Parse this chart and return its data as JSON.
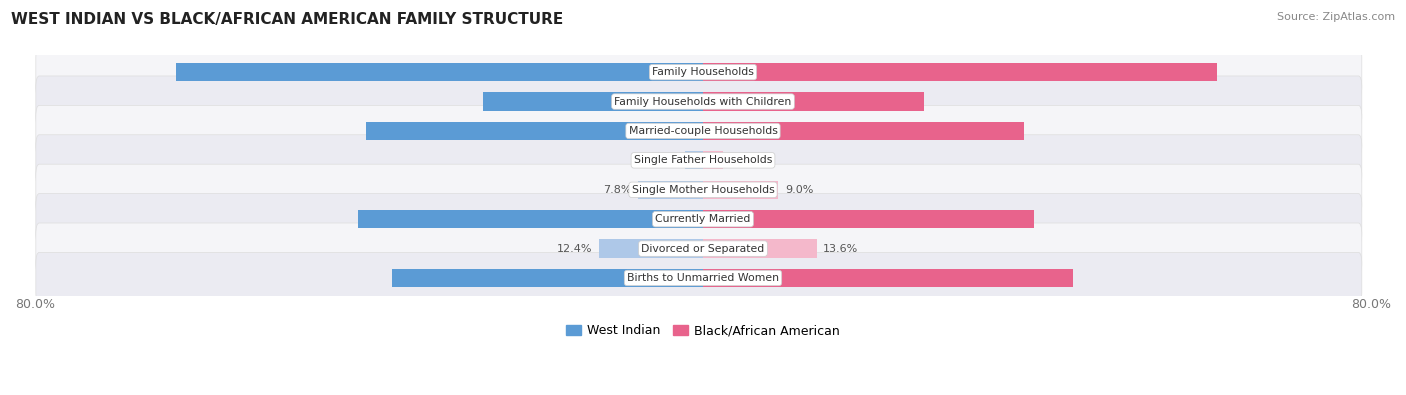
{
  "title": "WEST INDIAN VS BLACK/AFRICAN AMERICAN FAMILY STRUCTURE",
  "source": "Source: ZipAtlas.com",
  "categories": [
    "Family Households",
    "Family Households with Children",
    "Married-couple Households",
    "Single Father Households",
    "Single Mother Households",
    "Currently Married",
    "Divorced or Separated",
    "Births to Unmarried Women"
  ],
  "west_indian": [
    63.1,
    26.3,
    40.3,
    2.2,
    7.8,
    41.3,
    12.4,
    37.3
  ],
  "black_african": [
    61.5,
    26.5,
    38.5,
    2.4,
    9.0,
    39.6,
    13.6,
    44.3
  ],
  "max_val": 80.0,
  "color_west_indian_dark": "#5b9bd5",
  "color_west_indian_light": "#aec8e8",
  "color_black_african_dark": "#e8638c",
  "color_black_african_light": "#f4b8cb",
  "wi_dark_threshold": 20.0,
  "ba_dark_threshold": 20.0,
  "label_west_indian": "West Indian",
  "label_black_african": "Black/African American",
  "row_bg_light": "#f5f5f8",
  "row_bg_dark": "#ebebf2"
}
